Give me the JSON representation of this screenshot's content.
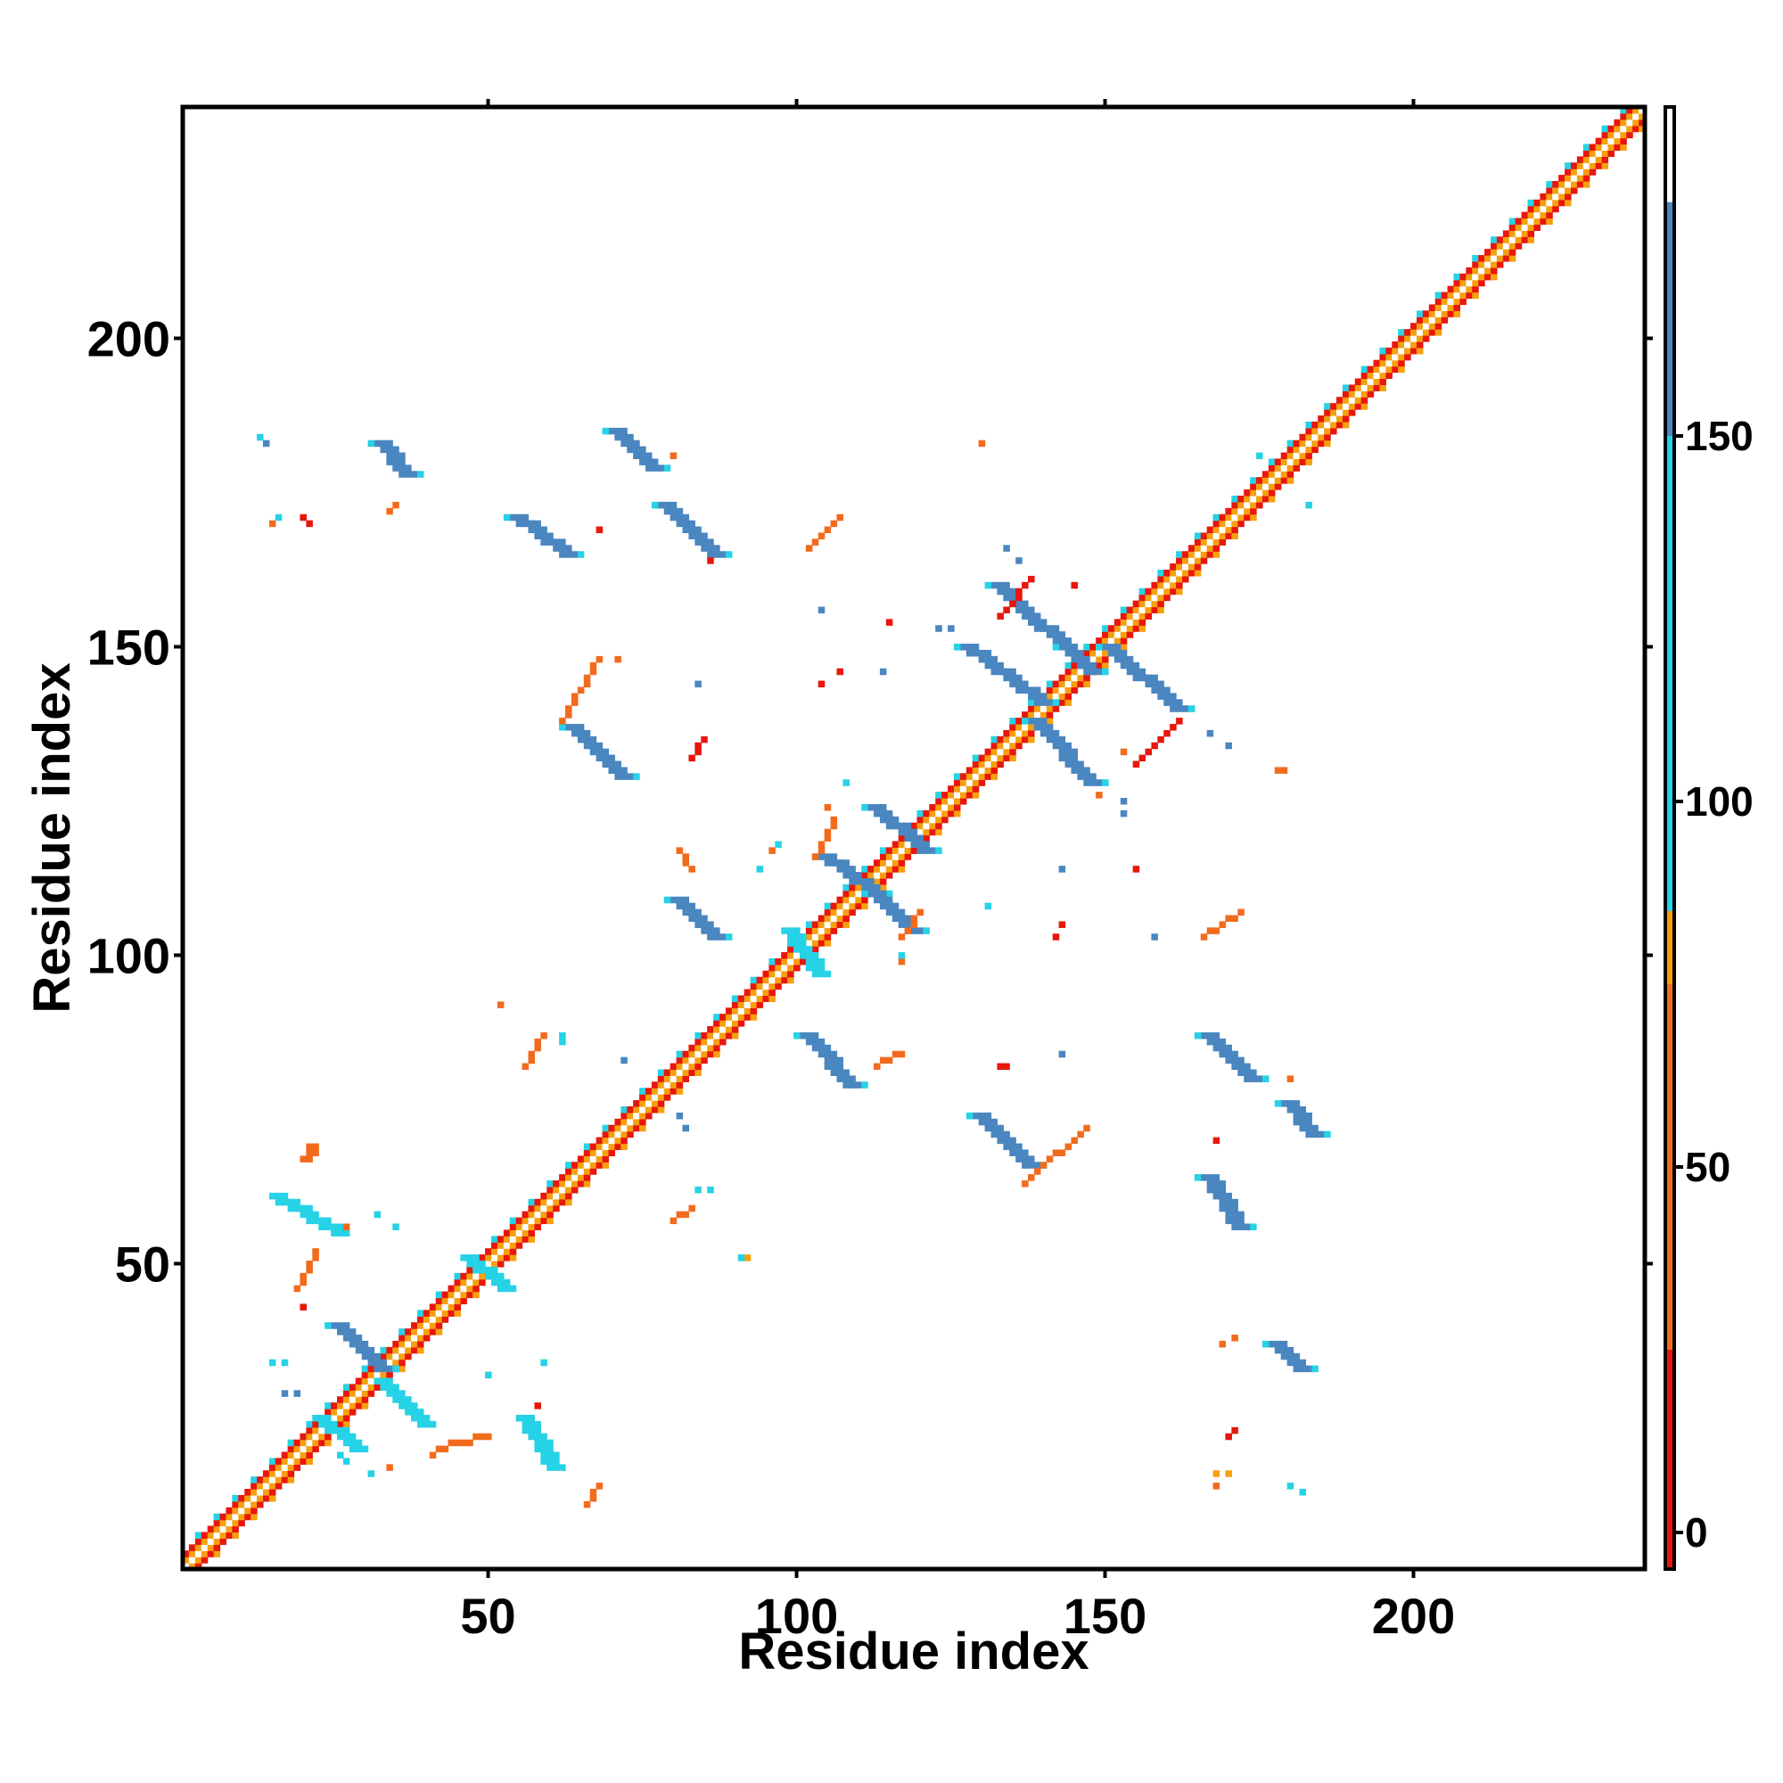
{
  "chart_data": {
    "type": "heatmap",
    "xlabel": "Residue index",
    "ylabel": "Residue index",
    "x_range": [
      1,
      237
    ],
    "y_range": [
      1,
      237
    ],
    "x_ticks": [
      50,
      100,
      150,
      200
    ],
    "y_ticks": [
      50,
      100,
      150,
      200
    ],
    "colorbar": {
      "ticks": [
        0,
        50,
        100,
        150
      ],
      "range": [
        -5,
        195
      ],
      "bands": [
        {
          "from": -5,
          "to": 25,
          "color": "#e8160c"
        },
        {
          "from": 25,
          "to": 75,
          "color": "#f26b1d"
        },
        {
          "from": 75,
          "to": 85,
          "color": "#f7a00f"
        },
        {
          "from": 85,
          "to": 150,
          "color": "#26d2e6"
        },
        {
          "from": 150,
          "to": 182,
          "color": "#4a86c0"
        },
        {
          "from": 182,
          "to": 195,
          "color": "#ffffff"
        }
      ]
    },
    "diagonal": {
      "start": 1,
      "end": 237,
      "inner_color": "#f7a00f",
      "outer_color": "#e8160c"
    },
    "segments": [
      {
        "x1": 132,
        "y1": 160,
        "x2": 147,
        "y2": 146,
        "w": 3,
        "color": "#4a86c0"
      },
      {
        "x1": 150,
        "y1": 150,
        "x2": 161,
        "y2": 140,
        "w": 3,
        "color": "#4a86c0"
      },
      {
        "x1": 127,
        "y1": 150,
        "x2": 139,
        "y2": 141,
        "w": 3,
        "color": "#4a86c0"
      },
      {
        "x1": 138,
        "y1": 138,
        "x2": 147,
        "y2": 128,
        "w": 3,
        "color": "#4a86c0"
      },
      {
        "x1": 63,
        "y1": 137,
        "x2": 71,
        "y2": 129,
        "w": 3,
        "color": "#4a86c0"
      },
      {
        "x1": 70,
        "y1": 185,
        "x2": 76,
        "y2": 179,
        "w": 3,
        "color": "#4a86c0"
      },
      {
        "x1": 78,
        "y1": 173,
        "x2": 86,
        "y2": 165,
        "w": 3,
        "color": "#4a86c0"
      },
      {
        "x1": 54,
        "y1": 171,
        "x2": 62,
        "y2": 165,
        "w": 3,
        "color": "#4a86c0"
      },
      {
        "x1": 32,
        "y1": 183,
        "x2": 36,
        "y2": 178,
        "w": 3,
        "color": "#4a86c0"
      },
      {
        "x1": 112,
        "y1": 124,
        "x2": 120,
        "y2": 117,
        "w": 3,
        "color": "#4a86c0"
      },
      {
        "x1": 104,
        "y1": 116,
        "x2": 112,
        "y2": 110,
        "w": 3,
        "color": "#4a86c0"
      },
      {
        "x1": 112,
        "y1": 110,
        "x2": 118,
        "y2": 104,
        "w": 3,
        "color": "#4a86c0"
      },
      {
        "x1": 80,
        "y1": 109,
        "x2": 86,
        "y2": 103,
        "w": 3,
        "color": "#4a86c0"
      },
      {
        "x1": 101,
        "y1": 87,
        "x2": 108,
        "y2": 79,
        "w": 3,
        "color": "#4a86c0"
      },
      {
        "x1": 129,
        "y1": 74,
        "x2": 137,
        "y2": 66,
        "w": 3,
        "color": "#4a86c0"
      },
      {
        "x1": 166,
        "y1": 87,
        "x2": 173,
        "y2": 80,
        "w": 3,
        "color": "#4a86c0"
      },
      {
        "x1": 179,
        "y1": 76,
        "x2": 183,
        "y2": 71,
        "w": 3,
        "color": "#4a86c0"
      },
      {
        "x1": 166,
        "y1": 64,
        "x2": 171,
        "y2": 56,
        "w": 3,
        "color": "#4a86c0"
      },
      {
        "x1": 177,
        "y1": 37,
        "x2": 181,
        "y2": 33,
        "w": 3,
        "color": "#4a86c0"
      },
      {
        "x1": 25,
        "y1": 40,
        "x2": 32,
        "y2": 33,
        "w": 3,
        "color": "#4a86c0"
      },
      {
        "x1": 32,
        "y1": 31,
        "x2": 39,
        "y2": 24,
        "w": 3,
        "color": "#26d2e6"
      },
      {
        "x1": 15,
        "y1": 61,
        "x2": 25,
        "y2": 55,
        "w": 3,
        "color": "#26d2e6"
      },
      {
        "x1": 55,
        "y1": 25,
        "x2": 60,
        "y2": 17,
        "w": 3,
        "color": "#26d2e6"
      },
      {
        "x1": 98,
        "y1": 104,
        "x2": 103,
        "y2": 97,
        "w": 3,
        "color": "#26d2e6"
      },
      {
        "x1": 22,
        "y1": 25,
        "x2": 28,
        "y2": 20,
        "w": 3,
        "color": "#26d2e6"
      },
      {
        "x1": 46,
        "y1": 51,
        "x2": 52,
        "y2": 46,
        "w": 3,
        "color": "#26d2e6"
      },
      {
        "x1": 20,
        "y1": 67,
        "x2": 21,
        "y2": 69,
        "w": 2,
        "color": "#f26b1d"
      },
      {
        "x1": 62,
        "y1": 138,
        "x2": 68,
        "y2": 148,
        "w": 1,
        "color": "#f26b1d"
      },
      {
        "x1": 102,
        "y1": 166,
        "x2": 107,
        "y2": 171,
        "w": 1,
        "color": "#f26b1d"
      },
      {
        "x1": 137,
        "y1": 63,
        "x2": 147,
        "y2": 72,
        "w": 1,
        "color": "#f26b1d"
      },
      {
        "x1": 166,
        "y1": 103,
        "x2": 172,
        "y2": 107,
        "w": 1,
        "color": "#f26b1d"
      },
      {
        "x1": 155,
        "y1": 131,
        "x2": 162,
        "y2": 138,
        "w": 1,
        "color": "#e8160c"
      },
      {
        "x1": 42,
        "y1": 20,
        "x2": 50,
        "y2": 22,
        "w": 1,
        "color": "#f26b1d"
      },
      {
        "x1": 19,
        "y1": 46,
        "x2": 22,
        "y2": 52,
        "w": 1,
        "color": "#f26b1d"
      },
      {
        "x1": 133,
        "y1": 155,
        "x2": 138,
        "y2": 161,
        "w": 1,
        "color": "#e8160c"
      },
      {
        "x1": 56,
        "y1": 82,
        "x2": 59,
        "y2": 87,
        "w": 1,
        "color": "#f26b1d"
      },
      {
        "x1": 81,
        "y1": 117,
        "x2": 83,
        "y2": 114,
        "w": 1,
        "color": "#f26b1d"
      },
      {
        "x1": 83,
        "y1": 132,
        "x2": 85,
        "y2": 135,
        "w": 1,
        "color": "#e8160c"
      },
      {
        "x1": 113,
        "y1": 82,
        "x2": 117,
        "y2": 84,
        "w": 1,
        "color": "#f26b1d"
      },
      {
        "x1": 80,
        "y1": 57,
        "x2": 83,
        "y2": 59,
        "w": 1,
        "color": "#f26b1d"
      },
      {
        "x1": 66,
        "y1": 11,
        "x2": 68,
        "y2": 14,
        "w": 1,
        "color": "#f26b1d"
      },
      {
        "x1": 117,
        "y1": 103,
        "x2": 120,
        "y2": 107,
        "w": 1,
        "color": "#f26b1d"
      },
      {
        "x1": 103,
        "y1": 116,
        "x2": 106,
        "y2": 122,
        "w": 1,
        "color": "#f26b1d"
      }
    ],
    "points": [
      {
        "x": 13,
        "y": 184,
        "color": "#26d2e6"
      },
      {
        "x": 14,
        "y": 183,
        "color": "#4a86c0"
      },
      {
        "x": 15,
        "y": 170,
        "color": "#f26b1d"
      },
      {
        "x": 16,
        "y": 171,
        "color": "#26d2e6"
      },
      {
        "x": 20,
        "y": 171,
        "color": "#e8160c"
      },
      {
        "x": 21,
        "y": 170,
        "color": "#e8160c"
      },
      {
        "x": 35,
        "y": 173,
        "color": "#f26b1d"
      },
      {
        "x": 34,
        "y": 172,
        "color": "#f26b1d"
      },
      {
        "x": 68,
        "y": 169,
        "color": "#e8160c"
      },
      {
        "x": 80,
        "y": 181,
        "color": "#f26b1d"
      },
      {
        "x": 86,
        "y": 164,
        "color": "#e8160c"
      },
      {
        "x": 130,
        "y": 183,
        "color": "#f26b1d"
      },
      {
        "x": 145,
        "y": 160,
        "color": "#e8160c"
      },
      {
        "x": 104,
        "y": 156,
        "color": "#4a86c0"
      },
      {
        "x": 115,
        "y": 154,
        "color": "#e8160c"
      },
      {
        "x": 123,
        "y": 153,
        "color": "#4a86c0"
      },
      {
        "x": 125,
        "y": 153,
        "color": "#4a86c0"
      },
      {
        "x": 134,
        "y": 166,
        "color": "#4a86c0"
      },
      {
        "x": 136,
        "y": 164,
        "color": "#4a86c0"
      },
      {
        "x": 107,
        "y": 146,
        "color": "#e8160c"
      },
      {
        "x": 104,
        "y": 144,
        "color": "#e8160c"
      },
      {
        "x": 114,
        "y": 146,
        "color": "#4a86c0"
      },
      {
        "x": 84,
        "y": 144,
        "color": "#4a86c0"
      },
      {
        "x": 71,
        "y": 148,
        "color": "#f26b1d"
      },
      {
        "x": 167,
        "y": 136,
        "color": "#4a86c0"
      },
      {
        "x": 170,
        "y": 134,
        "color": "#4a86c0"
      },
      {
        "x": 153,
        "y": 133,
        "color": "#f26b1d"
      },
      {
        "x": 178,
        "y": 130,
        "color": "#f26b1d"
      },
      {
        "x": 179,
        "y": 130,
        "color": "#f26b1d"
      },
      {
        "x": 153,
        "y": 125,
        "color": "#4a86c0"
      },
      {
        "x": 153,
        "y": 123,
        "color": "#4a86c0"
      },
      {
        "x": 149,
        "y": 126,
        "color": "#f26b1d"
      },
      {
        "x": 108,
        "y": 128,
        "color": "#26d2e6"
      },
      {
        "x": 143,
        "y": 114,
        "color": "#4a86c0"
      },
      {
        "x": 155,
        "y": 114,
        "color": "#e8160c"
      },
      {
        "x": 131,
        "y": 108,
        "color": "#26d2e6"
      },
      {
        "x": 143,
        "y": 105,
        "color": "#e8160c"
      },
      {
        "x": 142,
        "y": 103,
        "color": "#e8160c"
      },
      {
        "x": 158,
        "y": 103,
        "color": "#4a86c0"
      },
      {
        "x": 97,
        "y": 118,
        "color": "#26d2e6"
      },
      {
        "x": 96,
        "y": 117,
        "color": "#f26b1d"
      },
      {
        "x": 117,
        "y": 99,
        "color": "#f26b1d"
      },
      {
        "x": 117,
        "y": 100,
        "color": "#26d2e6"
      },
      {
        "x": 52,
        "y": 92,
        "color": "#f26b1d"
      },
      {
        "x": 62,
        "y": 87,
        "color": "#26d2e6"
      },
      {
        "x": 62,
        "y": 86,
        "color": "#26d2e6"
      },
      {
        "x": 72,
        "y": 83,
        "color": "#4a86c0"
      },
      {
        "x": 134,
        "y": 82,
        "color": "#e8160c"
      },
      {
        "x": 133,
        "y": 82,
        "color": "#e8160c"
      },
      {
        "x": 143,
        "y": 84,
        "color": "#4a86c0"
      },
      {
        "x": 180,
        "y": 80,
        "color": "#f26b1d"
      },
      {
        "x": 168,
        "y": 70,
        "color": "#e8160c"
      },
      {
        "x": 81,
        "y": 74,
        "color": "#4a86c0"
      },
      {
        "x": 82,
        "y": 72,
        "color": "#4a86c0"
      },
      {
        "x": 84,
        "y": 62,
        "color": "#26d2e6"
      },
      {
        "x": 86,
        "y": 62,
        "color": "#26d2e6"
      },
      {
        "x": 92,
        "y": 51,
        "color": "#f7a00f"
      },
      {
        "x": 91,
        "y": 51,
        "color": "#26d2e6"
      },
      {
        "x": 32,
        "y": 58,
        "color": "#26d2e6"
      },
      {
        "x": 35,
        "y": 56,
        "color": "#26d2e6"
      },
      {
        "x": 27,
        "y": 56,
        "color": "#f26b1d"
      },
      {
        "x": 20,
        "y": 43,
        "color": "#e8160c"
      },
      {
        "x": 15,
        "y": 34,
        "color": "#26d2e6"
      },
      {
        "x": 17,
        "y": 34,
        "color": "#26d2e6"
      },
      {
        "x": 17,
        "y": 29,
        "color": "#4a86c0"
      },
      {
        "x": 19,
        "y": 29,
        "color": "#4a86c0"
      },
      {
        "x": 26,
        "y": 19,
        "color": "#26d2e6"
      },
      {
        "x": 27,
        "y": 18,
        "color": "#26d2e6"
      },
      {
        "x": 31,
        "y": 16,
        "color": "#26d2e6"
      },
      {
        "x": 34,
        "y": 17,
        "color": "#f26b1d"
      },
      {
        "x": 41,
        "y": 19,
        "color": "#f26b1d"
      },
      {
        "x": 50,
        "y": 32,
        "color": "#26d2e6"
      },
      {
        "x": 58,
        "y": 27,
        "color": "#e8160c"
      },
      {
        "x": 59,
        "y": 34,
        "color": "#26d2e6"
      },
      {
        "x": 169,
        "y": 37,
        "color": "#f26b1d"
      },
      {
        "x": 171,
        "y": 38,
        "color": "#f26b1d"
      },
      {
        "x": 170,
        "y": 22,
        "color": "#e8160c"
      },
      {
        "x": 171,
        "y": 23,
        "color": "#e8160c"
      },
      {
        "x": 168,
        "y": 16,
        "color": "#f7a00f"
      },
      {
        "x": 170,
        "y": 16,
        "color": "#f7a00f"
      },
      {
        "x": 168,
        "y": 14,
        "color": "#f26b1d"
      },
      {
        "x": 180,
        "y": 14,
        "color": "#26d2e6"
      },
      {
        "x": 182,
        "y": 13,
        "color": "#26d2e6"
      },
      {
        "x": 175,
        "y": 181,
        "color": "#26d2e6"
      },
      {
        "x": 183,
        "y": 173,
        "color": "#26d2e6"
      },
      {
        "x": 142,
        "y": 150,
        "color": "#26d2e6"
      },
      {
        "x": 94,
        "y": 114,
        "color": "#26d2e6"
      },
      {
        "x": 105,
        "y": 124,
        "color": "#f26b1d"
      }
    ]
  }
}
